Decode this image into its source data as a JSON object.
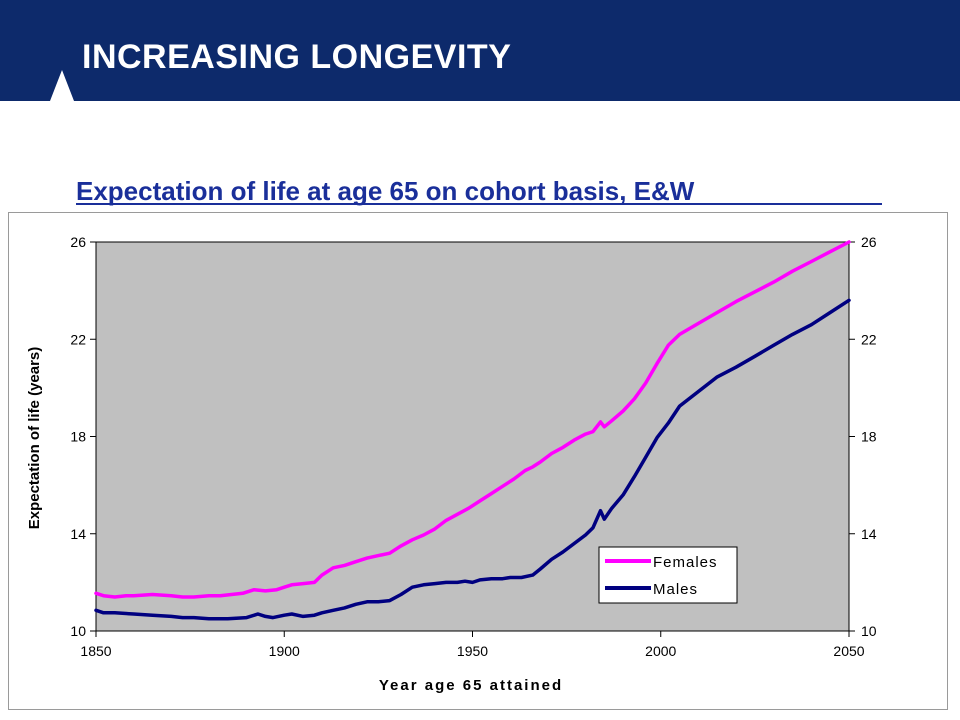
{
  "header": {
    "title": "INCREASING LONGEVITY"
  },
  "subtitle": "Expectation of life at age 65 on cohort basis, E&W",
  "colors": {
    "header_bg": "#0d2a6b",
    "subtitle": "#1a2f9a",
    "plot_bg": "#c0c0c0",
    "females": "#ff00ff",
    "males": "#000080"
  },
  "chart_data": {
    "type": "line",
    "title": "",
    "xlabel": "Year age 65 attained",
    "ylabel": "Expectation of life (years)",
    "xlim": [
      1850,
      2050
    ],
    "ylim": [
      10,
      26
    ],
    "x_ticks": [
      "1850",
      "1900",
      "1950",
      "2000",
      "2050"
    ],
    "y_ticks": [
      "10",
      "14",
      "18",
      "22",
      "26"
    ],
    "secondary_y_axis": true,
    "grid": false,
    "legend_position": "bottom-right",
    "series": [
      {
        "name": "Females",
        "color": "#ff00ff",
        "x": [
          1850,
          1852,
          1855,
          1858,
          1860,
          1865,
          1870,
          1873,
          1876,
          1880,
          1883,
          1886,
          1889,
          1892,
          1895,
          1898,
          1900,
          1902,
          1905,
          1908,
          1910,
          1913,
          1916,
          1919,
          1922,
          1925,
          1928,
          1931,
          1934,
          1937,
          1940,
          1943,
          1946,
          1949,
          1952,
          1955,
          1958,
          1961,
          1964,
          1966,
          1968,
          1971,
          1974,
          1977,
          1980,
          1982,
          1984,
          1985,
          1987,
          1990,
          1993,
          1996,
          1999,
          2002,
          2005,
          2010,
          2015,
          2020,
          2025,
          2030,
          2035,
          2040,
          2045,
          2050
        ],
        "values": [
          11.55,
          11.45,
          11.4,
          11.45,
          11.45,
          11.5,
          11.45,
          11.4,
          11.4,
          11.45,
          11.45,
          11.5,
          11.55,
          11.7,
          11.65,
          11.7,
          11.8,
          11.9,
          11.95,
          12.0,
          12.3,
          12.6,
          12.7,
          12.85,
          13.0,
          13.1,
          13.2,
          13.5,
          13.75,
          13.95,
          14.2,
          14.55,
          14.8,
          15.05,
          15.35,
          15.65,
          15.95,
          16.25,
          16.6,
          16.75,
          16.95,
          17.3,
          17.55,
          17.85,
          18.1,
          18.2,
          18.6,
          18.4,
          18.65,
          19.05,
          19.55,
          20.2,
          21.0,
          21.75,
          22.2,
          22.65,
          23.1,
          23.55,
          23.95,
          24.35,
          24.8,
          25.2,
          25.6,
          26.0
        ]
      },
      {
        "name": "Males",
        "color": "#000080",
        "x": [
          1850,
          1852,
          1855,
          1860,
          1865,
          1870,
          1873,
          1876,
          1880,
          1885,
          1890,
          1893,
          1895,
          1897,
          1900,
          1902,
          1905,
          1908,
          1910,
          1913,
          1916,
          1919,
          1922,
          1925,
          1928,
          1931,
          1934,
          1937,
          1940,
          1943,
          1946,
          1948,
          1950,
          1952,
          1955,
          1958,
          1960,
          1963,
          1966,
          1968,
          1971,
          1974,
          1977,
          1980,
          1982,
          1984,
          1985,
          1987,
          1990,
          1993,
          1996,
          1999,
          2002,
          2005,
          2010,
          2015,
          2020,
          2025,
          2030,
          2035,
          2040,
          2045,
          2050
        ],
        "values": [
          10.85,
          10.75,
          10.75,
          10.7,
          10.65,
          10.6,
          10.55,
          10.55,
          10.5,
          10.5,
          10.55,
          10.7,
          10.6,
          10.55,
          10.65,
          10.7,
          10.6,
          10.65,
          10.75,
          10.85,
          10.95,
          11.1,
          11.2,
          11.2,
          11.25,
          11.5,
          11.8,
          11.9,
          11.95,
          12.0,
          12.0,
          12.05,
          12.0,
          12.1,
          12.15,
          12.15,
          12.2,
          12.2,
          12.3,
          12.55,
          12.95,
          13.25,
          13.6,
          13.95,
          14.25,
          14.95,
          14.6,
          15.05,
          15.6,
          16.35,
          17.15,
          17.95,
          18.55,
          19.25,
          19.85,
          20.45,
          20.85,
          21.3,
          21.75,
          22.2,
          22.6,
          23.1,
          23.6
        ]
      }
    ]
  }
}
